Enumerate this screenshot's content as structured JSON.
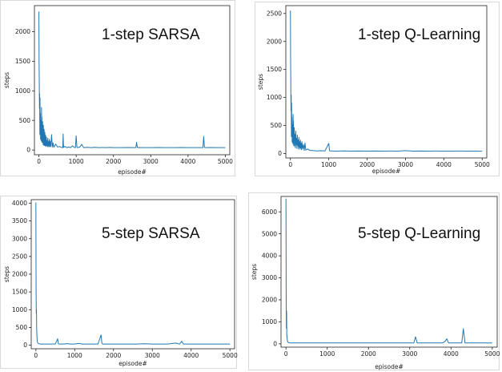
{
  "colors": {
    "series": "#1f77b4",
    "axis": "#222222"
  },
  "chart_data": [
    {
      "type": "line",
      "title": "1-step SARSA",
      "xlabel": "episode#",
      "ylabel": "steps",
      "xlim": [
        -120,
        5120
      ],
      "ylim": [
        -80,
        2440
      ],
      "xticks": [
        0,
        1000,
        2000,
        3000,
        4000,
        5000
      ],
      "yticks": [
        0,
        500,
        1000,
        1500,
        2000
      ],
      "series": [
        {
          "name": "steps",
          "x": [
            0,
            5,
            10,
            15,
            20,
            25,
            30,
            35,
            40,
            45,
            50,
            55,
            60,
            65,
            70,
            75,
            80,
            85,
            90,
            95,
            100,
            105,
            110,
            115,
            120,
            125,
            130,
            135,
            140,
            145,
            150,
            155,
            160,
            165,
            170,
            175,
            180,
            185,
            190,
            195,
            200,
            210,
            220,
            230,
            240,
            250,
            260,
            270,
            280,
            290,
            300,
            320,
            340,
            360,
            380,
            400,
            450,
            500,
            550,
            600,
            640,
            650,
            660,
            700,
            750,
            800,
            850,
            900,
            960,
            980,
            1000,
            1020,
            1040,
            1100,
            1150,
            1200,
            1300,
            1400,
            1500,
            1600,
            1700,
            1800,
            1900,
            2000,
            2200,
            2400,
            2600,
            2620,
            2640,
            2660,
            2700,
            2800,
            3000,
            3200,
            3400,
            3600,
            3800,
            4000,
            4200,
            4400,
            4420,
            4440,
            4460,
            4500,
            4600,
            4800,
            5000
          ],
          "values": [
            2340,
            1500,
            1150,
            700,
            950,
            260,
            880,
            400,
            620,
            180,
            500,
            300,
            440,
            150,
            720,
            240,
            560,
            130,
            400,
            200,
            480,
            120,
            330,
            90,
            420,
            160,
            260,
            80,
            350,
            140,
            230,
            75,
            300,
            100,
            200,
            70,
            250,
            90,
            170,
            60,
            220,
            80,
            160,
            55,
            200,
            70,
            140,
            50,
            180,
            60,
            150,
            55,
            260,
            50,
            120,
            45,
            100,
            50,
            60,
            45,
            40,
            270,
            45,
            60,
            40,
            50,
            40,
            70,
            40,
            40,
            240,
            45,
            40,
            50,
            95,
            40,
            45,
            40,
            45,
            40,
            42,
            40,
            44,
            40,
            40,
            42,
            40,
            130,
            45,
            40,
            42,
            40,
            40,
            42,
            40,
            40,
            42,
            40,
            40,
            40,
            230,
            45,
            40,
            40,
            42,
            40,
            40
          ]
        }
      ]
    },
    {
      "type": "line",
      "title": "1-step Q-Learning",
      "xlabel": "episode#",
      "ylabel": "steps",
      "xlim": [
        -120,
        5120
      ],
      "ylim": [
        -80,
        2640
      ],
      "xticks": [
        0,
        1000,
        2000,
        3000,
        4000,
        5000
      ],
      "yticks": [
        0,
        500,
        1000,
        1500,
        2000,
        2500
      ],
      "series": [
        {
          "name": "steps",
          "x": [
            0,
            5,
            10,
            15,
            20,
            25,
            30,
            35,
            40,
            45,
            50,
            55,
            60,
            65,
            70,
            75,
            80,
            85,
            90,
            95,
            100,
            110,
            120,
            130,
            140,
            150,
            160,
            170,
            180,
            190,
            200,
            210,
            220,
            230,
            240,
            250,
            260,
            270,
            280,
            290,
            300,
            320,
            340,
            360,
            380,
            400,
            450,
            500,
            600,
            700,
            800,
            900,
            1000,
            1020,
            1040,
            1100,
            1200,
            1400,
            1600,
            1800,
            2000,
            2200,
            2400,
            2600,
            2800,
            3000,
            3200,
            3400,
            3600,
            3800,
            4000,
            4200,
            4400,
            4600,
            4800,
            5000
          ],
          "values": [
            2550,
            1700,
            1200,
            760,
            1050,
            300,
            900,
            420,
            650,
            200,
            520,
            320,
            460,
            170,
            700,
            250,
            580,
            140,
            420,
            210,
            460,
            130,
            340,
            100,
            400,
            160,
            270,
            90,
            330,
            140,
            240,
            80,
            290,
            110,
            210,
            75,
            240,
            95,
            180,
            65,
            210,
            80,
            160,
            55,
            190,
            60,
            80,
            55,
            50,
            45,
            48,
            45,
            180,
            50,
            45,
            44,
            42,
            45,
            42,
            44,
            42,
            44,
            42,
            43,
            42,
            50,
            42,
            44,
            42,
            43,
            42,
            42,
            43,
            42,
            42,
            40
          ]
        }
      ]
    },
    {
      "type": "line",
      "title": "5-step SARSA",
      "xlabel": "episode#",
      "ylabel": "steps",
      "xlim": [
        -120,
        5120
      ],
      "ylim": [
        -100,
        4100
      ],
      "xticks": [
        0,
        1000,
        2000,
        3000,
        4000,
        5000
      ],
      "yticks": [
        0,
        500,
        1000,
        1500,
        2000,
        2500,
        3000,
        3500,
        4000
      ],
      "series": [
        {
          "name": "steps",
          "x": [
            0,
            5,
            10,
            15,
            20,
            25,
            30,
            35,
            40,
            45,
            50,
            60,
            70,
            80,
            90,
            100,
            120,
            140,
            160,
            200,
            300,
            400,
            500,
            560,
            580,
            600,
            700,
            800,
            900,
            1000,
            1100,
            1200,
            1400,
            1500,
            1600,
            1680,
            1700,
            1720,
            1800,
            2000,
            2200,
            2400,
            2600,
            2800,
            3000,
            3200,
            3400,
            3600,
            3700,
            3760,
            3800,
            4000,
            4200,
            4400,
            4600,
            4800,
            5000
          ],
          "values": [
            4020,
            1600,
            900,
            1000,
            500,
            300,
            200,
            120,
            90,
            70,
            60,
            50,
            45,
            40,
            38,
            36,
            34,
            33,
            32,
            32,
            32,
            32,
            32,
            180,
            40,
            32,
            32,
            45,
            32,
            32,
            50,
            32,
            32,
            32,
            32,
            290,
            60,
            32,
            32,
            32,
            32,
            32,
            32,
            40,
            32,
            32,
            32,
            60,
            32,
            110,
            32,
            32,
            32,
            32,
            32,
            32,
            32
          ]
        }
      ]
    },
    {
      "type": "line",
      "title": "5-step Q-Learning",
      "xlabel": "episode#",
      "ylabel": "steps",
      "xlim": [
        -120,
        5120
      ],
      "ylim": [
        -150,
        6700
      ],
      "xticks": [
        0,
        1000,
        2000,
        3000,
        4000,
        5000
      ],
      "yticks": [
        0,
        1000,
        2000,
        3000,
        4000,
        5000,
        6000
      ],
      "series": [
        {
          "name": "steps",
          "x": [
            0,
            5,
            10,
            15,
            20,
            25,
            30,
            35,
            40,
            45,
            50,
            60,
            70,
            80,
            100,
            120,
            160,
            200,
            400,
            600,
            800,
            1000,
            1200,
            1400,
            1600,
            1800,
            2000,
            2200,
            2400,
            2600,
            2800,
            3000,
            3100,
            3140,
            3180,
            3300,
            3500,
            3700,
            3800,
            3860,
            3900,
            3940,
            4000,
            4200,
            4260,
            4300,
            4340,
            4400,
            4600,
            4800,
            5000
          ],
          "values": [
            6600,
            1800,
            700,
            1500,
            400,
            300,
            200,
            150,
            100,
            80,
            70,
            60,
            55,
            50,
            45,
            42,
            40,
            40,
            40,
            40,
            40,
            40,
            40,
            40,
            40,
            40,
            40,
            40,
            40,
            40,
            40,
            40,
            40,
            320,
            40,
            40,
            40,
            40,
            40,
            120,
            230,
            40,
            40,
            40,
            40,
            690,
            40,
            40,
            40,
            40,
            40
          ]
        }
      ]
    }
  ]
}
